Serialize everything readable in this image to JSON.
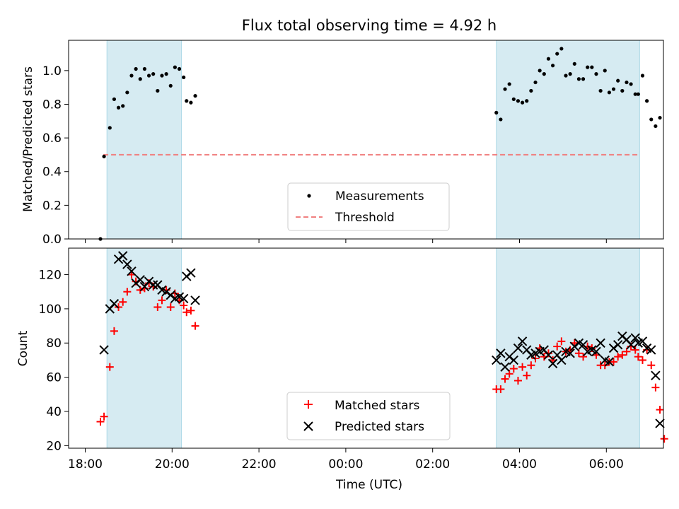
{
  "chart_data": [
    {
      "type": "scatter",
      "title": "Flux total observing time = 4.92 h",
      "ylabel": "Matched/Predicted stars",
      "ylim": [
        0,
        1.18
      ],
      "yticks": [
        "0.0",
        "0.2",
        "0.4",
        "0.6",
        "0.8",
        "1.0"
      ],
      "ytick_values": [
        0,
        0.2,
        0.4,
        0.6,
        0.8,
        1.0
      ],
      "threshold": {
        "label": "Threshold",
        "value": 0.5,
        "from": "18:25",
        "to": "06:45",
        "color": "#f08080"
      },
      "legend": {
        "placement": "lower center",
        "entries": [
          "Measurements",
          "Threshold"
        ]
      },
      "series": [
        {
          "name": "Measurements",
          "color": "#000000",
          "points": [
            [
              "18:21",
              0.0
            ],
            [
              "18:26",
              0.49
            ],
            [
              "18:34",
              0.66
            ],
            [
              "18:40",
              0.83
            ],
            [
              "18:46",
              0.78
            ],
            [
              "18:52",
              0.79
            ],
            [
              "18:58",
              0.87
            ],
            [
              "19:04",
              0.97
            ],
            [
              "19:10",
              1.01
            ],
            [
              "19:16",
              0.95
            ],
            [
              "19:22",
              1.01
            ],
            [
              "19:28",
              0.97
            ],
            [
              "19:34",
              0.98
            ],
            [
              "19:40",
              0.88
            ],
            [
              "19:46",
              0.97
            ],
            [
              "19:52",
              0.98
            ],
            [
              "19:58",
              0.91
            ],
            [
              "20:04",
              1.02
            ],
            [
              "20:10",
              1.01
            ],
            [
              "20:16",
              0.96
            ],
            [
              "20:20",
              0.82
            ],
            [
              "20:26",
              0.81
            ],
            [
              "20:32",
              0.85
            ],
            [
              "03:28",
              0.75
            ],
            [
              "03:34",
              0.71
            ],
            [
              "03:40",
              0.89
            ],
            [
              "03:46",
              0.92
            ],
            [
              "03:52",
              0.83
            ],
            [
              "03:58",
              0.82
            ],
            [
              "04:04",
              0.81
            ],
            [
              "04:10",
              0.82
            ],
            [
              "04:16",
              0.88
            ],
            [
              "04:22",
              0.93
            ],
            [
              "04:28",
              1.0
            ],
            [
              "04:34",
              0.98
            ],
            [
              "04:40",
              1.07
            ],
            [
              "04:46",
              1.03
            ],
            [
              "04:52",
              1.1
            ],
            [
              "04:58",
              1.13
            ],
            [
              "05:04",
              0.97
            ],
            [
              "05:10",
              0.98
            ],
            [
              "05:16",
              1.04
            ],
            [
              "05:22",
              0.95
            ],
            [
              "05:28",
              0.95
            ],
            [
              "05:34",
              1.02
            ],
            [
              "05:40",
              1.02
            ],
            [
              "05:46",
              0.98
            ],
            [
              "05:52",
              0.88
            ],
            [
              "05:58",
              1.0
            ],
            [
              "06:04",
              0.87
            ],
            [
              "06:10",
              0.89
            ],
            [
              "06:16",
              0.94
            ],
            [
              "06:22",
              0.88
            ],
            [
              "06:28",
              0.93
            ],
            [
              "06:34",
              0.92
            ],
            [
              "06:40",
              0.86
            ],
            [
              "06:44",
              0.86
            ],
            [
              "06:50",
              0.97
            ],
            [
              "06:56",
              0.82
            ],
            [
              "07:02",
              0.71
            ],
            [
              "07:08",
              0.67
            ],
            [
              "07:14",
              0.72
            ]
          ]
        }
      ]
    },
    {
      "type": "scatter",
      "xlabel": "Time (UTC)",
      "ylabel": "Count",
      "ylim": [
        18.5,
        135.5
      ],
      "yticks": [
        "20",
        "40",
        "60",
        "80",
        "100",
        "120"
      ],
      "ytick_values": [
        20,
        40,
        60,
        80,
        100,
        120
      ],
      "xticks": [
        "18:00",
        "20:00",
        "22:00",
        "00:00",
        "02:00",
        "04:00",
        "06:00"
      ],
      "legend": {
        "placement": "lower center",
        "entries": [
          "Matched stars",
          "Predicted stars"
        ]
      },
      "series": [
        {
          "name": "Matched stars",
          "marker": "+",
          "color": "#ff0000",
          "points": [
            [
              "18:21",
              34
            ],
            [
              "18:26",
              37
            ],
            [
              "18:34",
              66
            ],
            [
              "18:40",
              87
            ],
            [
              "18:46",
              101
            ],
            [
              "18:52",
              104
            ],
            [
              "18:58",
              110
            ],
            [
              "19:04",
              120
            ],
            [
              "19:10",
              116
            ],
            [
              "19:16",
              111
            ],
            [
              "19:22",
              112
            ],
            [
              "19:28",
              115
            ],
            [
              "19:34",
              113
            ],
            [
              "19:40",
              101
            ],
            [
              "19:46",
              105
            ],
            [
              "19:52",
              111
            ],
            [
              "19:58",
              101
            ],
            [
              "20:04",
              109
            ],
            [
              "20:10",
              105
            ],
            [
              "20:16",
              102
            ],
            [
              "20:20",
              98
            ],
            [
              "20:26",
              99
            ],
            [
              "20:32",
              90
            ],
            [
              "03:28",
              53
            ],
            [
              "03:34",
              53
            ],
            [
              "03:40",
              59
            ],
            [
              "03:46",
              62
            ],
            [
              "03:52",
              65
            ],
            [
              "03:58",
              58
            ],
            [
              "04:04",
              66
            ],
            [
              "04:10",
              61
            ],
            [
              "04:16",
              67
            ],
            [
              "04:22",
              71
            ],
            [
              "04:28",
              77
            ],
            [
              "04:34",
              72
            ],
            [
              "04:40",
              74
            ],
            [
              "04:46",
              70
            ],
            [
              "04:52",
              78
            ],
            [
              "04:58",
              81
            ],
            [
              "05:04",
              75
            ],
            [
              "05:10",
              76
            ],
            [
              "05:16",
              80
            ],
            [
              "05:22",
              74
            ],
            [
              "05:28",
              72
            ],
            [
              "05:34",
              78
            ],
            [
              "05:40",
              77
            ],
            [
              "05:46",
              73
            ],
            [
              "05:52",
              67
            ],
            [
              "05:58",
              67
            ],
            [
              "06:04",
              69
            ],
            [
              "06:10",
              69
            ],
            [
              "06:16",
              72
            ],
            [
              "06:22",
              73
            ],
            [
              "06:28",
              75
            ],
            [
              "06:34",
              78
            ],
            [
              "06:40",
              76
            ],
            [
              "06:44",
              72
            ],
            [
              "06:50",
              70
            ],
            [
              "06:56",
              76
            ],
            [
              "07:02",
              67
            ],
            [
              "07:08",
              54
            ],
            [
              "07:14",
              41
            ],
            [
              "07:20",
              24
            ]
          ]
        },
        {
          "name": "Predicted stars",
          "marker": "x",
          "color": "#000000",
          "points": [
            [
              "18:26",
              76
            ],
            [
              "18:34",
              100
            ],
            [
              "18:40",
              103
            ],
            [
              "18:46",
              129
            ],
            [
              "18:52",
              131
            ],
            [
              "18:58",
              126
            ],
            [
              "19:04",
              122
            ],
            [
              "19:10",
              115
            ],
            [
              "19:16",
              117
            ],
            [
              "19:22",
              113
            ],
            [
              "19:28",
              116
            ],
            [
              "19:34",
              114
            ],
            [
              "19:40",
              114
            ],
            [
              "19:46",
              111
            ],
            [
              "19:52",
              110
            ],
            [
              "19:58",
              108
            ],
            [
              "20:04",
              106
            ],
            [
              "20:10",
              107
            ],
            [
              "20:16",
              106
            ],
            [
              "20:20",
              119
            ],
            [
              "20:26",
              121
            ],
            [
              "20:32",
              105
            ],
            [
              "03:28",
              70
            ],
            [
              "03:34",
              74
            ],
            [
              "03:40",
              66
            ],
            [
              "03:46",
              72
            ],
            [
              "03:52",
              70
            ],
            [
              "03:58",
              77
            ],
            [
              "04:04",
              81
            ],
            [
              "04:10",
              76
            ],
            [
              "04:16",
              73
            ],
            [
              "04:22",
              74
            ],
            [
              "04:28",
              75
            ],
            [
              "04:34",
              76
            ],
            [
              "04:40",
              73
            ],
            [
              "04:46",
              68
            ],
            [
              "04:52",
              73
            ],
            [
              "04:58",
              70
            ],
            [
              "05:04",
              75
            ],
            [
              "05:10",
              74
            ],
            [
              "05:16",
              78
            ],
            [
              "05:22",
              80
            ],
            [
              "05:28",
              79
            ],
            [
              "05:34",
              75
            ],
            [
              "05:40",
              76
            ],
            [
              "05:46",
              75
            ],
            [
              "05:52",
              80
            ],
            [
              "05:58",
              70
            ],
            [
              "06:04",
              69
            ],
            [
              "06:10",
              77
            ],
            [
              "06:16",
              79
            ],
            [
              "06:22",
              84
            ],
            [
              "06:28",
              82
            ],
            [
              "06:34",
              79
            ],
            [
              "06:40",
              83
            ],
            [
              "06:44",
              80
            ],
            [
              "06:50",
              81
            ],
            [
              "06:56",
              77
            ],
            [
              "07:02",
              76
            ],
            [
              "07:08",
              61
            ],
            [
              "07:14",
              33
            ]
          ]
        }
      ]
    }
  ],
  "shaded_intervals": [
    {
      "from": "18:30",
      "to": "20:13"
    },
    {
      "from": "03:28",
      "to": "06:46"
    }
  ],
  "shade_color": "#add8e6"
}
